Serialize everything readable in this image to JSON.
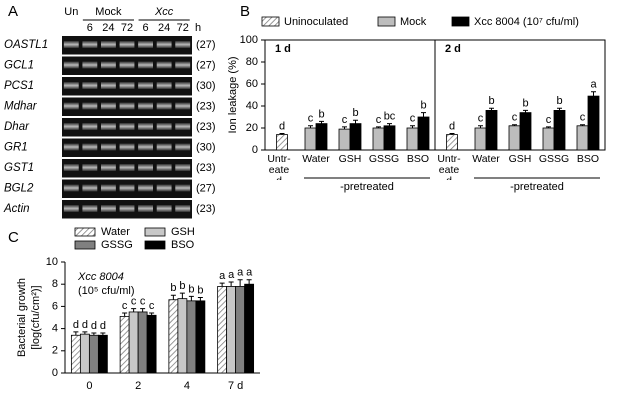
{
  "chart_data": [
    {
      "type": "gel",
      "panel": "A",
      "columns": [
        {
          "label": "Un"
        },
        {
          "label": "Mock",
          "lanes": [
            "6",
            "24",
            "72"
          ]
        },
        {
          "label": "Xcc",
          "lanes": [
            "6",
            "24",
            "72"
          ]
        }
      ],
      "unit": "h",
      "rows": [
        {
          "gene": "OASTL1",
          "cycles": "(27)"
        },
        {
          "gene": "GCL1",
          "cycles": "(27)"
        },
        {
          "gene": "PCS1",
          "cycles": "(30)"
        },
        {
          "gene": "Mdhar",
          "cycles": "(23)"
        },
        {
          "gene": "Dhar",
          "cycles": "(23)"
        },
        {
          "gene": "GR1",
          "cycles": "(30)"
        },
        {
          "gene": "GST1",
          "cycles": "(23)"
        },
        {
          "gene": "BGL2",
          "cycles": "(27)"
        },
        {
          "gene": "Actin",
          "cycles": "(23)"
        }
      ]
    },
    {
      "type": "bar",
      "panel": "B",
      "ylabel": "Ion leakage (%)",
      "ylim": [
        0,
        100
      ],
      "yticks": [
        0,
        20,
        40,
        60,
        80,
        100
      ],
      "categories": [
        "Untr-eated",
        "Water",
        "GSH",
        "GSSG",
        "BSO"
      ],
      "group_label": "-pretreated",
      "series": [
        {
          "name": "Uninoculated",
          "color": "#ffffff",
          "hatched": true
        },
        {
          "name": "Mock",
          "color": "#bdbdbd"
        },
        {
          "name": "Xcc 8004 (10⁷ cfu/ml)",
          "color": "#000000"
        }
      ],
      "facets": [
        {
          "label": "1 d",
          "series": [
            {
              "values": [
                14,
                null,
                null,
                null,
                null
              ],
              "errors": [
                1,
                null,
                null,
                null,
                null
              ],
              "letters": [
                "d",
                null,
                null,
                null,
                null
              ]
            },
            {
              "values": [
                null,
                20,
                19,
                20,
                20
              ],
              "errors": [
                null,
                2,
                2,
                1,
                2
              ],
              "letters": [
                null,
                "c",
                "c",
                "c",
                "c"
              ]
            },
            {
              "values": [
                null,
                24,
                24,
                22,
                30
              ],
              "errors": [
                null,
                2,
                3,
                2,
                4
              ],
              "letters": [
                null,
                "b",
                "b",
                "bc",
                "b"
              ]
            }
          ]
        },
        {
          "label": "2 d",
          "series": [
            {
              "values": [
                14,
                null,
                null,
                null,
                null
              ],
              "errors": [
                1,
                null,
                null,
                null,
                null
              ],
              "letters": [
                "d",
                null,
                null,
                null,
                null
              ]
            },
            {
              "values": [
                null,
                20,
                22,
                20,
                22
              ],
              "errors": [
                null,
                2,
                1,
                1,
                1
              ],
              "letters": [
                null,
                "c",
                "c",
                "c",
                "c"
              ]
            },
            {
              "values": [
                null,
                36,
                34,
                36,
                49
              ],
              "errors": [
                null,
                2,
                2,
                2,
                4
              ],
              "letters": [
                null,
                "b",
                "b",
                "b",
                "a"
              ]
            }
          ]
        }
      ]
    },
    {
      "type": "bar",
      "panel": "C",
      "ylabel": [
        "Bacterial growth",
        "[log(cfu/cm²)]"
      ],
      "annotation": [
        "Xcc 8004",
        "(10⁵ cfu/ml)"
      ],
      "ylim": [
        0,
        10
      ],
      "yticks": [
        0,
        2,
        4,
        6,
        8,
        10
      ],
      "categories": [
        "0",
        "2",
        "4",
        "7 d"
      ],
      "series": [
        {
          "name": "Water",
          "color": "#ffffff",
          "hatched": true,
          "values": [
            3.4,
            5.1,
            6.6,
            7.8
          ],
          "errors": [
            0.3,
            0.3,
            0.4,
            0.3
          ],
          "letters": [
            "d",
            "c",
            "b",
            "a"
          ]
        },
        {
          "name": "GSH",
          "color": "#c8c8c8",
          "values": [
            3.5,
            5.5,
            6.7,
            7.8
          ],
          "errors": [
            0.2,
            0.3,
            0.5,
            0.4
          ],
          "letters": [
            "d",
            "c",
            "b",
            "a"
          ]
        },
        {
          "name": "GSSG",
          "color": "#808080",
          "values": [
            3.4,
            5.5,
            6.5,
            7.8
          ],
          "errors": [
            0.2,
            0.3,
            0.4,
            0.6
          ],
          "letters": [
            "d",
            "c",
            "b",
            "a"
          ]
        },
        {
          "name": "BSO",
          "color": "#000000",
          "values": [
            3.4,
            5.2,
            6.5,
            8.0
          ],
          "errors": [
            0.2,
            0.2,
            0.3,
            0.4
          ],
          "letters": [
            "d",
            "c",
            "b",
            "a"
          ]
        }
      ]
    }
  ]
}
